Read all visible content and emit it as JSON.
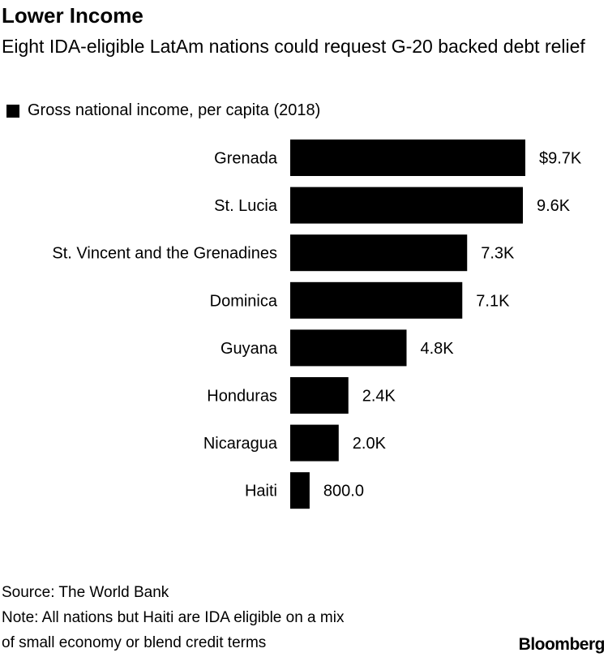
{
  "title": "Lower Income",
  "subtitle": "Eight IDA-eligible LatAm nations could request G-20 backed debt relief",
  "legend": "Gross national income, per capita (2018)",
  "source": "Source: The World Bank",
  "note_line1": "Note: All nations but Haiti are IDA eligible on a mix",
  "note_line2": "of small economy or blend credit terms",
  "logo": "Bloomberg",
  "chart_data": {
    "type": "bar",
    "orientation": "horizontal",
    "title": "Lower Income",
    "categories": [
      "Grenada",
      "St. Lucia",
      "St. Vincent and the Grenadines",
      "Dominica",
      "Guyana",
      "Honduras",
      "Nicaragua",
      "Haiti"
    ],
    "values": [
      9700,
      9600,
      7300,
      7100,
      4800,
      2400,
      2000,
      800
    ],
    "labels": [
      "$9.7K",
      "9.6K",
      "7.3K",
      "7.1K",
      "4.8K",
      "2.4K",
      "2.0K",
      "800.0"
    ],
    "series_name": "Gross national income, per capita (2018)",
    "color": "#000000",
    "xlim": [
      0,
      9700
    ]
  }
}
